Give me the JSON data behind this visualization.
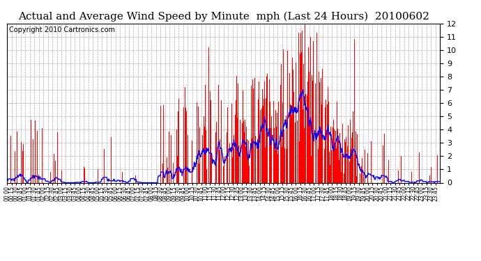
{
  "title": "Actual and Average Wind Speed by Minute  mph (Last 24 Hours)  20100602",
  "copyright": "Copyright 2010 Cartronics.com",
  "ylim": [
    0.0,
    12.0
  ],
  "yticks": [
    0.0,
    1.0,
    2.0,
    3.0,
    4.0,
    5.0,
    6.0,
    7.0,
    8.0,
    9.0,
    10.0,
    11.0,
    12.0
  ],
  "bg_color": "#ffffff",
  "bar_color": "#ff0000",
  "line_color": "#0000ff",
  "grid_color": "#aaaaaa",
  "title_fontsize": 11,
  "copyright_fontsize": 7,
  "tick_interval_minutes": 15,
  "total_minutes": 1440
}
